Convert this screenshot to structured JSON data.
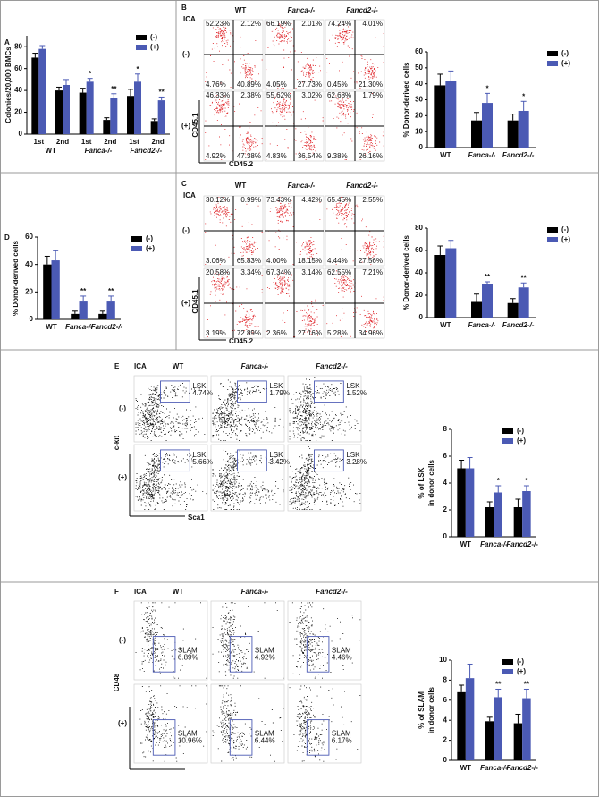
{
  "chart_data": [
    {
      "type": "bar",
      "letter": "A",
      "y_label": "Colonies/20,000 BMCs",
      "categories": [
        "1st",
        "2nd",
        "1st",
        "2nd",
        "1st",
        "2nd"
      ],
      "groups": [
        "WT",
        "Fanca-/-",
        "Fancd2-/-"
      ],
      "series": [
        {
          "name": "(-)",
          "color": "#000000",
          "values": [
            70,
            40,
            38,
            13,
            35,
            12
          ],
          "errors": [
            4,
            3,
            4,
            2,
            6,
            2
          ]
        },
        {
          "name": "(+)",
          "color": "#4b5ab4",
          "values": [
            78,
            45,
            48,
            33,
            48,
            31
          ],
          "errors": [
            3,
            5,
            3,
            4,
            7,
            3
          ],
          "sig": [
            null,
            null,
            "*",
            "**",
            "*",
            "**"
          ]
        }
      ],
      "ylim": [
        0,
        90
      ],
      "yticks": [
        0,
        20,
        40,
        60,
        80
      ],
      "legend": "top-right"
    },
    {
      "type": "bar",
      "y_label": "% Donor-derived cells",
      "categories": [
        "WT",
        "Fanca-/-",
        "Fancd2-/-"
      ],
      "series": [
        {
          "name": "(-)",
          "color": "#000000",
          "values": [
            39,
            17,
            17
          ],
          "errors": [
            7,
            5,
            4
          ]
        },
        {
          "name": "(+)",
          "color": "#4b5ab4",
          "values": [
            42,
            28,
            23
          ],
          "errors": [
            6,
            6,
            6
          ],
          "sig": [
            null,
            "*",
            "*"
          ]
        }
      ],
      "ylim": [
        0,
        60
      ],
      "yticks": [
        0,
        10,
        20,
        30,
        40,
        50,
        60
      ],
      "legend": "right"
    },
    {
      "type": "bar",
      "letter": "D",
      "y_label": "% Donor-derived cells",
      "categories": [
        "WT",
        "Fanca-/-",
        "Fancd2-/-"
      ],
      "series": [
        {
          "name": "(-)",
          "color": "#000000",
          "values": [
            40,
            4,
            4
          ],
          "errors": [
            6,
            2,
            2
          ]
        },
        {
          "name": "(+)",
          "color": "#4b5ab4",
          "values": [
            43,
            13,
            13
          ],
          "errors": [
            7,
            4,
            4
          ],
          "sig": [
            null,
            "**",
            "**"
          ]
        }
      ],
      "ylim": [
        0,
        60
      ],
      "yticks": [
        0,
        20,
        40,
        60
      ],
      "legend": "right"
    },
    {
      "type": "bar",
      "y_label": "% Donor-derived cells",
      "categories": [
        "WT",
        "Fanca-/-",
        "Fancd2-/-"
      ],
      "series": [
        {
          "name": "(-)",
          "color": "#000000",
          "values": [
            56,
            14,
            13
          ],
          "errors": [
            8,
            7,
            4
          ]
        },
        {
          "name": "(+)",
          "color": "#4b5ab4",
          "values": [
            62,
            30,
            27
          ],
          "errors": [
            7,
            2,
            4
          ],
          "sig": [
            null,
            "**",
            "**"
          ]
        }
      ],
      "ylim": [
        0,
        80
      ],
      "yticks": [
        0,
        20,
        40,
        60,
        80
      ],
      "legend": "right"
    },
    {
      "type": "bar",
      "y_label": [
        "% of LSK",
        "in donor cells"
      ],
      "categories": [
        "WT",
        "Fanca-/-",
        "Fancd2-/-"
      ],
      "series": [
        {
          "name": "(-)",
          "color": "#000000",
          "values": [
            5.1,
            2.2,
            2.2
          ],
          "errors": [
            0.6,
            0.4,
            0.6
          ]
        },
        {
          "name": "(+)",
          "color": "#4b5ab4",
          "values": [
            5.1,
            3.3,
            3.4
          ],
          "errors": [
            0.8,
            0.5,
            0.4
          ],
          "sig": [
            null,
            "*",
            "*"
          ]
        }
      ],
      "ylim": [
        0,
        8
      ],
      "yticks": [
        0,
        2,
        4,
        6,
        8
      ],
      "legend": "top-right"
    },
    {
      "type": "bar",
      "y_label": [
        "% of SLAM",
        "in donor cells"
      ],
      "categories": [
        "WT",
        "Fanca-/-",
        "Fancd2-/-"
      ],
      "series": [
        {
          "name": "(-)",
          "color": "#000000",
          "values": [
            6.8,
            3.9,
            3.7
          ],
          "errors": [
            0.7,
            0.4,
            0.9
          ]
        },
        {
          "name": "(+)",
          "color": "#4b5ab4",
          "values": [
            8.2,
            6.3,
            6.2
          ],
          "errors": [
            1.4,
            0.8,
            0.9
          ],
          "sig": [
            null,
            "**",
            "**"
          ]
        }
      ],
      "ylim": [
        0,
        10
      ],
      "yticks": [
        0,
        2,
        4,
        6,
        8,
        10
      ],
      "legend": "top-right"
    }
  ],
  "flow": [
    {
      "letter": "B",
      "group_label": "ICA",
      "columns": [
        "WT",
        "Fanca-/-",
        "Fancd2-/-"
      ],
      "rows": [
        "(-)",
        "(+)"
      ],
      "y_label": "CD45.1",
      "x_label": "CD45.2",
      "plots": [
        [
          {
            "quadrants": [
              "52.23%",
              "2.12%",
              "4.76%",
              "40.89%"
            ]
          },
          {
            "quadrants": [
              "66.19%",
              "2.01%",
              "4.05%",
              "27.73%"
            ]
          },
          {
            "quadrants": [
              "74.24%",
              "4.01%",
              "0.45%",
              "21.30%"
            ]
          }
        ],
        [
          {
            "quadrants": [
              "46.33%",
              "2.38%",
              "4.92%",
              "47.38%"
            ]
          },
          {
            "quadrants": [
              "55.62%",
              "3.02%",
              "4.83%",
              "36.54%"
            ]
          },
          {
            "quadrants": [
              "62.68%",
              "1.79%",
              "9.38%",
              "26.16%"
            ]
          }
        ]
      ]
    },
    {
      "letter": "C",
      "group_label": "ICA",
      "columns": [
        "WT",
        "Fanca-/-",
        "Fancd2-/-"
      ],
      "rows": [
        "(-)",
        "(+)"
      ],
      "y_label": "CD45.1",
      "x_label": "CD45.2",
      "plots": [
        [
          {
            "quadrants": [
              "30.12%",
              "0.99%",
              "3.06%",
              "65.83%"
            ]
          },
          {
            "quadrants": [
              "73.43%",
              "4.42%",
              "4.00%",
              "18.15%"
            ]
          },
          {
            "quadrants": [
              "65.45%",
              "2.55%",
              "4.44%",
              "27.56%"
            ]
          }
        ],
        [
          {
            "quadrants": [
              "20.58%",
              "3.34%",
              "3.19%",
              "72.89%"
            ]
          },
          {
            "quadrants": [
              "67.34%",
              "3.14%",
              "2.36%",
              "27.16%"
            ]
          },
          {
            "quadrants": [
              "62.55%",
              "7.21%",
              "5.28%",
              "34.96%"
            ]
          }
        ]
      ]
    },
    {
      "letter": "E",
      "group_label": "ICA",
      "columns": [
        "WT",
        "Fanca-/-",
        "Fancd2-/-"
      ],
      "rows": [
        "(-)",
        "(+)"
      ],
      "y_label": "c-kit",
      "x_label": "Sca1",
      "plots": [
        [
          {
            "gate": "LSK",
            "value": "4.74%"
          },
          {
            "gate": "LSK",
            "value": "1.79%"
          },
          {
            "gate": "LSK",
            "value": "1.52%"
          }
        ],
        [
          {
            "gate": "LSK",
            "value": "5.66%"
          },
          {
            "gate": "LSK",
            "value": "3.42%"
          },
          {
            "gate": "LSK",
            "value": "3.28%"
          }
        ]
      ]
    },
    {
      "letter": "F",
      "group_label": "ICA",
      "columns": [
        "WT",
        "Fanca-/-",
        "Fancd2-/-"
      ],
      "rows": [
        "(-)",
        "(+)"
      ],
      "y_label": "CD48",
      "plots": [
        [
          {
            "gate": "SLAM",
            "value": "6.89%"
          },
          {
            "gate": "SLAM",
            "value": "4.92%"
          },
          {
            "gate": "SLAM",
            "value": "4.46%"
          }
        ],
        [
          {
            "gate": "SLAM",
            "value": "10.96%"
          },
          {
            "gate": "SLAM",
            "value": "6.44%"
          },
          {
            "gate": "SLAM",
            "value": "6.17%"
          }
        ]
      ]
    }
  ]
}
